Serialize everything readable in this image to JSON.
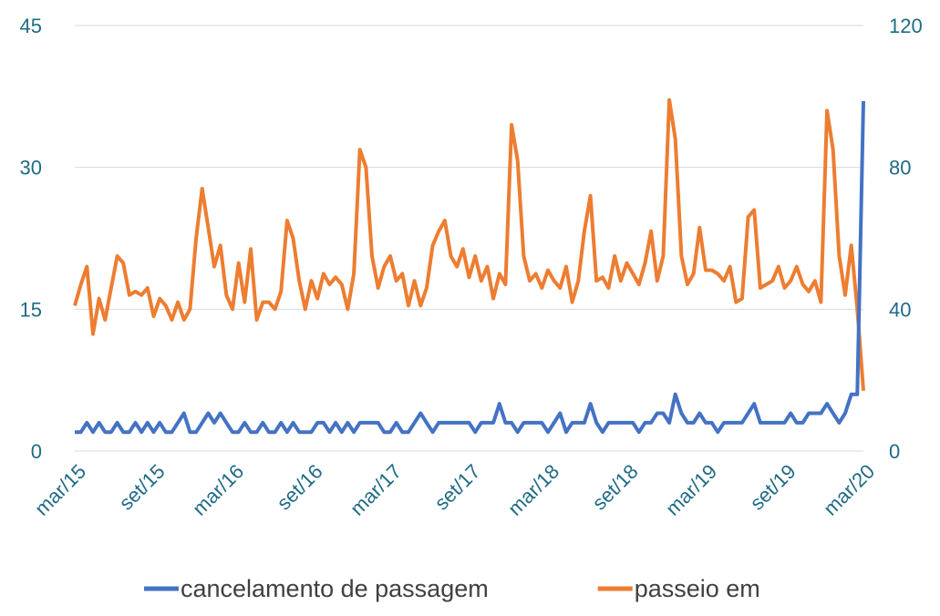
{
  "chart_data": {
    "type": "line",
    "categories": [
      "mar/15",
      null,
      null,
      null,
      null,
      null,
      null,
      null,
      null,
      null,
      null,
      null,
      null,
      "set/15",
      null,
      null,
      null,
      null,
      null,
      null,
      null,
      null,
      null,
      null,
      null,
      null,
      "mar/16",
      null,
      null,
      null,
      null,
      null,
      null,
      null,
      null,
      null,
      null,
      null,
      null,
      "set/16",
      null,
      null,
      null,
      null,
      null,
      null,
      null,
      null,
      null,
      null,
      null,
      null,
      "mar/17",
      null,
      null,
      null,
      null,
      null,
      null,
      null,
      null,
      null,
      null,
      null,
      null,
      "set/17",
      null,
      null,
      null,
      null,
      null,
      null,
      null,
      null,
      null,
      null,
      null,
      null,
      "mar/18",
      null,
      null,
      null,
      null,
      null,
      null,
      null,
      null,
      null,
      null,
      null,
      null,
      "set/18",
      null,
      null,
      null,
      null,
      null,
      null,
      null,
      null,
      null,
      null,
      null,
      null,
      "mar/19",
      null,
      null,
      null,
      null,
      null,
      null,
      null,
      null,
      null,
      null,
      null,
      null,
      "set/19",
      null,
      null,
      null,
      null,
      null,
      null,
      null,
      null,
      null,
      null,
      null,
      null,
      "mar/20"
    ],
    "series": [
      {
        "name": "cancelamento de passagem",
        "color": "#4472c4",
        "values": [
          2,
          2,
          3,
          2,
          3,
          2,
          2,
          3,
          2,
          2,
          3,
          2,
          3,
          2,
          3,
          2,
          2,
          3,
          4,
          2,
          2,
          3,
          4,
          3,
          4,
          3,
          2,
          2,
          3,
          2,
          2,
          3,
          2,
          2,
          3,
          2,
          3,
          2,
          2,
          2,
          3,
          3,
          2,
          3,
          2,
          3,
          2,
          3,
          3,
          3,
          3,
          2,
          2,
          3,
          2,
          2,
          3,
          4,
          3,
          2,
          3,
          3,
          3,
          3,
          3,
          3,
          2,
          3,
          3,
          3,
          5,
          3,
          3,
          2,
          3,
          3,
          3,
          3,
          2,
          3,
          4,
          2,
          3,
          3,
          3,
          5,
          3,
          2,
          3,
          3,
          3,
          3,
          3,
          2,
          3,
          3,
          4,
          4,
          3,
          6,
          4,
          3,
          3,
          4,
          3,
          3,
          2,
          3,
          3,
          3,
          3,
          4,
          5,
          3,
          3,
          3,
          3,
          3,
          4,
          3,
          3,
          4,
          4,
          4,
          5,
          4,
          3,
          4,
          6,
          6,
          37
        ]
      },
      {
        "name": "passeio em",
        "color": "#ed7d31",
        "axis": "y2",
        "values": [
          41,
          47,
          52,
          33,
          43,
          37,
          46,
          55,
          53,
          44,
          45,
          44,
          46,
          38,
          43,
          41,
          37,
          42,
          37,
          40,
          60,
          74,
          63,
          52,
          58,
          44,
          40,
          53,
          42,
          57,
          37,
          42,
          42,
          40,
          45,
          65,
          60,
          48,
          40,
          48,
          43,
          50,
          47,
          49,
          47,
          40,
          50,
          85,
          80,
          55,
          46,
          52,
          55,
          48,
          50,
          41,
          48,
          41,
          46,
          58,
          62,
          65,
          55,
          52,
          57,
          49,
          55,
          48,
          52,
          43,
          50,
          47,
          92,
          82,
          55,
          48,
          50,
          46,
          51,
          48,
          46,
          52,
          42,
          48,
          62,
          72,
          48,
          49,
          46,
          55,
          48,
          53,
          50,
          47,
          53,
          62,
          48,
          55,
          99,
          88,
          55,
          47,
          50,
          63,
          51,
          51,
          50,
          48,
          52,
          42,
          43,
          66,
          68,
          46,
          47,
          48,
          52,
          46,
          48,
          52,
          47,
          45,
          48,
          42,
          96,
          85,
          55,
          44,
          58,
          40,
          17
        ]
      }
    ],
    "ylim": [
      0,
      45
    ],
    "yticks": [
      0,
      15,
      30,
      45
    ],
    "y2lim": [
      0,
      120
    ],
    "y2ticks": [
      0,
      40,
      80,
      120
    ],
    "grid": true,
    "legend": "bottom"
  }
}
